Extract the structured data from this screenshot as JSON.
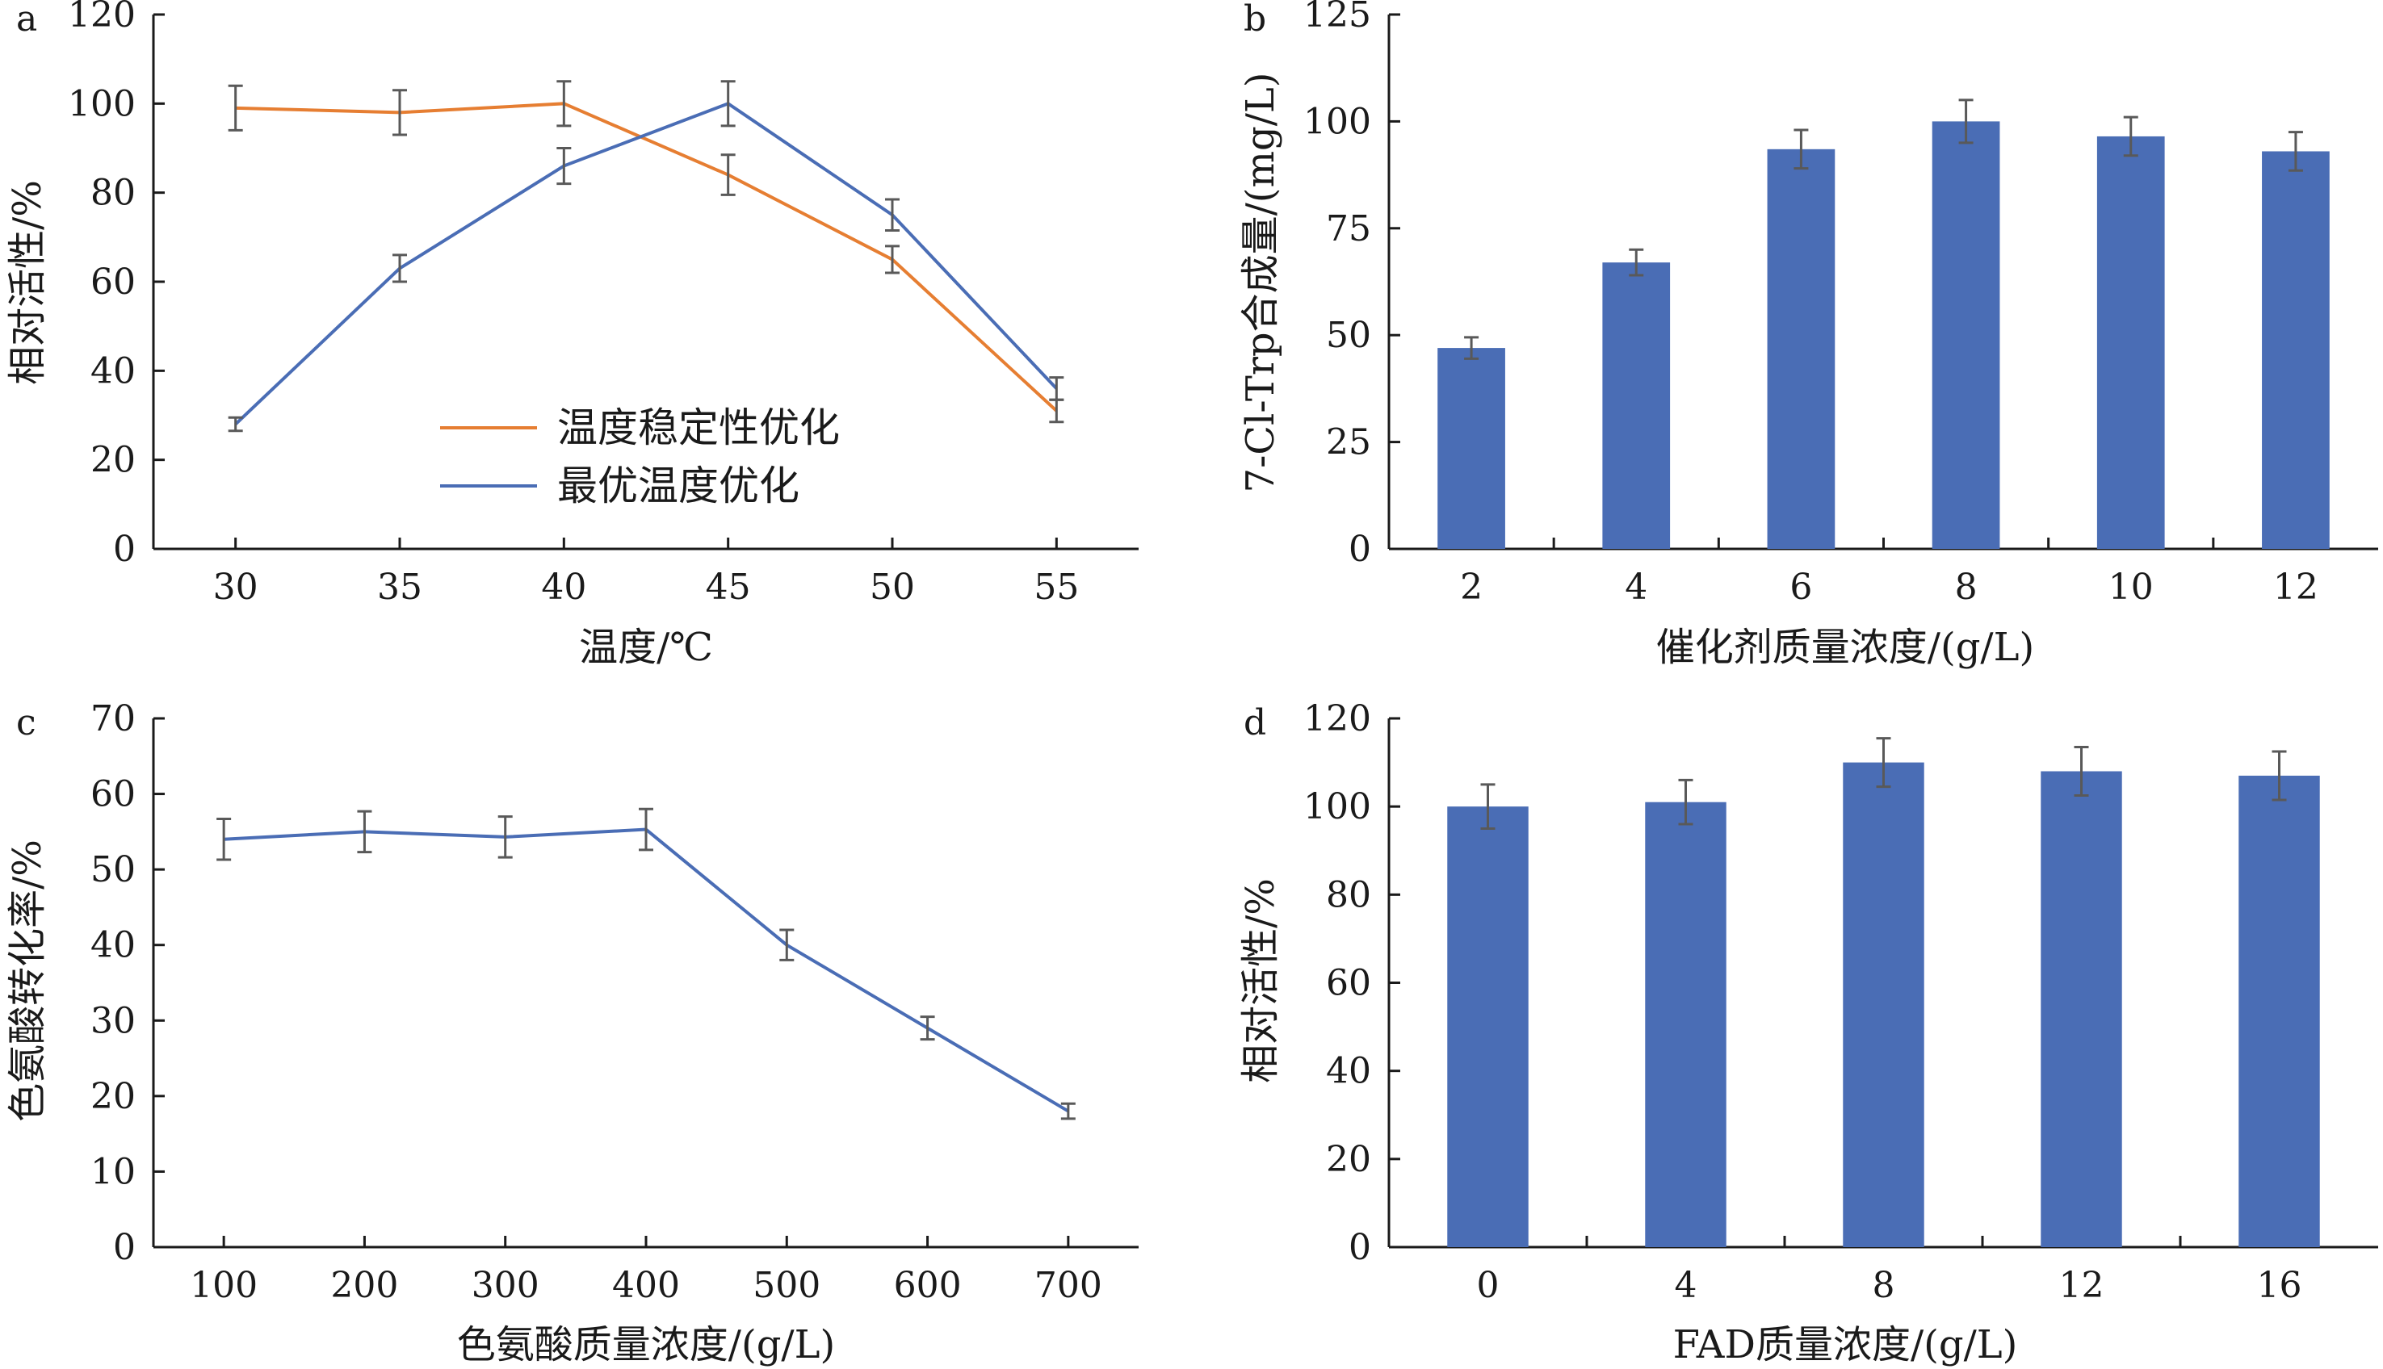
{
  "figure": {
    "colors": {
      "orange": "#E67E32",
      "blue": "#4A6DB5",
      "bar": "#4A6DB5",
      "error": "#595959"
    }
  },
  "chart_data": [
    {
      "panel": "a",
      "type": "line",
      "xlabel": "温度/℃",
      "ylabel": "相对活性/%",
      "x": [
        30,
        35,
        40,
        45,
        50,
        55
      ],
      "xlim": [
        27.5,
        57.5
      ],
      "ylim": [
        0,
        120
      ],
      "yticks": [
        0,
        20,
        40,
        60,
        80,
        100,
        120
      ],
      "grid": false,
      "legend_position": "center-left",
      "series": [
        {
          "name": "温度稳定性优化",
          "color": "orange",
          "values": [
            99,
            98,
            100,
            84,
            65,
            31
          ],
          "errors": [
            5,
            5,
            5,
            4.5,
            3,
            2.5
          ]
        },
        {
          "name": "最优温度优化",
          "color": "blue",
          "values": [
            28,
            63,
            86,
            100,
            75,
            36
          ],
          "errors": [
            1.5,
            3,
            4,
            5,
            3.5,
            2.5
          ]
        }
      ]
    },
    {
      "panel": "b",
      "type": "bar",
      "xlabel": "催化剂质量浓度/(g/L)",
      "ylabel": "7-Cl-Trp合成量/(mg/L)",
      "categories": [
        "2",
        "4",
        "6",
        "8",
        "10",
        "12"
      ],
      "values": [
        47,
        67,
        93.5,
        100,
        96.5,
        93
      ],
      "errors": [
        2.5,
        3,
        4.5,
        5,
        4.5,
        4.5
      ],
      "ylim": [
        0,
        125
      ],
      "yticks": [
        0,
        25,
        50,
        75,
        100,
        125
      ],
      "grid": false
    },
    {
      "panel": "c",
      "type": "line",
      "xlabel": "色氨酸质量浓度/(g/L)",
      "ylabel": "色氨酸转化率/%",
      "x": [
        100,
        200,
        300,
        400,
        500,
        600,
        700
      ],
      "xlim": [
        50,
        750
      ],
      "ylim": [
        0,
        70
      ],
      "yticks": [
        0,
        10,
        20,
        30,
        40,
        50,
        60,
        70
      ],
      "grid": false,
      "series": [
        {
          "color": "blue",
          "values": [
            54,
            55,
            54.3,
            55.3,
            40,
            29,
            18
          ],
          "errors": [
            2.7,
            2.7,
            2.7,
            2.7,
            2,
            1.5,
            1
          ]
        }
      ]
    },
    {
      "panel": "d",
      "type": "bar",
      "xlabel": "FAD质量浓度/(g/L)",
      "ylabel": "相对活性/%",
      "categories": [
        "0",
        "4",
        "8",
        "12",
        "16"
      ],
      "values": [
        100,
        101,
        110,
        108,
        107
      ],
      "errors": [
        5,
        5,
        5.5,
        5.5,
        5.5
      ],
      "ylim": [
        0,
        120
      ],
      "yticks": [
        0,
        20,
        40,
        60,
        80,
        100,
        120
      ],
      "grid": false
    }
  ]
}
